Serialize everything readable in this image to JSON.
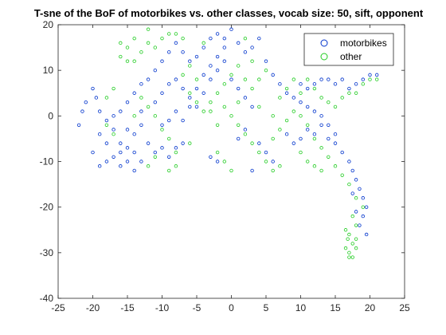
{
  "chart_data": {
    "type": "scatter",
    "title": "T-sne of the BoF of motorbikes vs. other classes, vocab size: 50, sift, opponent",
    "xlabel": "",
    "ylabel": "",
    "xlim": [
      -25,
      25
    ],
    "ylim": [
      -40,
      20
    ],
    "xticks": [
      -25,
      -20,
      -15,
      -10,
      -5,
      0,
      5,
      10,
      15,
      20,
      25
    ],
    "yticks": [
      -40,
      -30,
      -20,
      -10,
      0,
      10,
      20
    ],
    "grid": false,
    "legend_position": "top-right",
    "series": [
      {
        "name": "motorbikes",
        "color": "#0033cc",
        "points": [
          [
            -22,
            -2
          ],
          [
            -21.5,
            1
          ],
          [
            -21,
            3
          ],
          [
            -20,
            6
          ],
          [
            -19.5,
            4
          ],
          [
            -19,
            1
          ],
          [
            -18,
            -1
          ],
          [
            -17,
            0
          ],
          [
            -19,
            -4
          ],
          [
            -18,
            -6
          ],
          [
            -20,
            -8
          ],
          [
            -19,
            -11
          ],
          [
            -18,
            -10
          ],
          [
            -17,
            -9
          ],
          [
            -16,
            -11
          ],
          [
            -15,
            -10
          ],
          [
            -14,
            -12
          ],
          [
            -16,
            -6
          ],
          [
            -15,
            -3
          ],
          [
            -14,
            -4
          ],
          [
            -13,
            -2
          ],
          [
            -17,
            -3
          ],
          [
            -16,
            -8
          ],
          [
            -15,
            -7
          ],
          [
            -14,
            -8
          ],
          [
            -13,
            -10
          ],
          [
            -12,
            -6
          ],
          [
            -11,
            -8
          ],
          [
            -10,
            -7
          ],
          [
            -9,
            -9
          ],
          [
            -8,
            -7
          ],
          [
            -7,
            -6
          ],
          [
            -15,
            3
          ],
          [
            -14,
            5
          ],
          [
            -13,
            7
          ],
          [
            -12,
            8
          ],
          [
            -11,
            10
          ],
          [
            -10,
            12
          ],
          [
            -9,
            14
          ],
          [
            -8,
            16
          ],
          [
            -7,
            14
          ],
          [
            -6,
            12
          ],
          [
            -5,
            13
          ],
          [
            -4,
            15
          ],
          [
            -3,
            17
          ],
          [
            -2,
            18
          ],
          [
            -1,
            17
          ],
          [
            0,
            19
          ],
          [
            1,
            16
          ],
          [
            2,
            14
          ],
          [
            3,
            15
          ],
          [
            4,
            17
          ],
          [
            -11,
            3
          ],
          [
            -10,
            5
          ],
          [
            -9,
            7
          ],
          [
            -8,
            8
          ],
          [
            -7,
            6
          ],
          [
            -6,
            4
          ],
          [
            -5,
            2
          ],
          [
            -4,
            5
          ],
          [
            -3,
            8
          ],
          [
            -2,
            10
          ],
          [
            -1,
            12
          ],
          [
            0,
            8
          ],
          [
            1,
            6
          ],
          [
            2,
            4
          ],
          [
            3,
            2
          ],
          [
            -10,
            -2
          ],
          [
            -9,
            -1
          ],
          [
            -8,
            1
          ],
          [
            -7,
            -1
          ],
          [
            -6,
            2
          ],
          [
            -5,
            6
          ],
          [
            -4,
            9
          ],
          [
            -3,
            11
          ],
          [
            -2,
            13
          ],
          [
            -1,
            15
          ],
          [
            5,
            12
          ],
          [
            6,
            9
          ],
          [
            7,
            7
          ],
          [
            8,
            5
          ],
          [
            9,
            4
          ],
          [
            10,
            3
          ],
          [
            11,
            2
          ],
          [
            12,
            1
          ],
          [
            13,
            0
          ],
          [
            14,
            -2
          ],
          [
            15,
            -4
          ],
          [
            10,
            7
          ],
          [
            11,
            6
          ],
          [
            12,
            7
          ],
          [
            13,
            8
          ],
          [
            14,
            8
          ],
          [
            15,
            7
          ],
          [
            16,
            8
          ],
          [
            17,
            6
          ],
          [
            18,
            7
          ],
          [
            19,
            8
          ],
          [
            20,
            9
          ],
          [
            21,
            9
          ],
          [
            8,
            -4
          ],
          [
            9,
            -6
          ],
          [
            10,
            -5
          ],
          [
            11,
            -3
          ],
          [
            12,
            -4
          ],
          [
            13,
            -2
          ],
          [
            14,
            -5
          ],
          [
            15,
            -6
          ],
          [
            16,
            -8
          ],
          [
            17,
            -10
          ],
          [
            17.5,
            -12
          ],
          [
            18,
            -14
          ],
          [
            18.5,
            -16
          ],
          [
            19,
            -18
          ],
          [
            19.5,
            -20
          ],
          [
            19,
            -22
          ],
          [
            18.5,
            -24
          ],
          [
            19.5,
            -26
          ],
          [
            18,
            -21
          ],
          [
            17.5,
            -17
          ],
          [
            -2,
            -10
          ],
          [
            -3,
            -9
          ],
          [
            1,
            -5
          ],
          [
            2,
            -3
          ],
          [
            4,
            -6
          ],
          [
            5,
            -8
          ],
          [
            6,
            -10
          ],
          [
            3,
            -12
          ],
          [
            -13,
            1
          ],
          [
            -16,
            1
          ]
        ]
      },
      {
        "name": "other",
        "color": "#22cc22",
        "points": [
          [
            -16,
            16
          ],
          [
            -15,
            15
          ],
          [
            -14,
            17
          ],
          [
            -13,
            14
          ],
          [
            -15,
            12
          ],
          [
            -16,
            13
          ],
          [
            -14,
            12
          ],
          [
            -12,
            16
          ],
          [
            -11,
            15
          ],
          [
            -10,
            17
          ],
          [
            -9,
            18
          ],
          [
            -8,
            18
          ],
          [
            -7,
            17
          ],
          [
            -12,
            19
          ],
          [
            -18,
            4
          ],
          [
            -17,
            6
          ],
          [
            -18,
            -2
          ],
          [
            -17,
            -4
          ],
          [
            -13,
            4
          ],
          [
            -12,
            2
          ],
          [
            -11,
            0
          ],
          [
            -10,
            -3
          ],
          [
            -9,
            -5
          ],
          [
            -8,
            -8
          ],
          [
            -12,
            -11
          ],
          [
            -11,
            -9
          ],
          [
            -9,
            -12
          ],
          [
            -6,
            5
          ],
          [
            -5,
            3
          ],
          [
            -4,
            1
          ],
          [
            -3,
            3
          ],
          [
            -2,
            5
          ],
          [
            -1,
            7
          ],
          [
            0,
            9
          ],
          [
            1,
            11
          ],
          [
            -7,
            9
          ],
          [
            -6,
            11
          ],
          [
            -5,
            8
          ],
          [
            -3,
            1
          ],
          [
            -1,
            2
          ],
          [
            1,
            3
          ],
          [
            3,
            6
          ],
          [
            4,
            8
          ],
          [
            5,
            10
          ],
          [
            0,
            0
          ],
          [
            1,
            -2
          ],
          [
            2,
            -4
          ],
          [
            3,
            -6
          ],
          [
            4,
            -8
          ],
          [
            5,
            -10
          ],
          [
            6,
            -12
          ],
          [
            7,
            -11
          ],
          [
            0,
            -12
          ],
          [
            -1,
            -10
          ],
          [
            -2,
            -8
          ],
          [
            6,
            -5
          ],
          [
            7,
            -3
          ],
          [
            8,
            -1
          ],
          [
            9,
            1
          ],
          [
            10,
            0
          ],
          [
            11,
            -2
          ],
          [
            12,
            -5
          ],
          [
            13,
            -7
          ],
          [
            14,
            -9
          ],
          [
            15,
            -11
          ],
          [
            16,
            -13
          ],
          [
            7,
            4
          ],
          [
            8,
            6
          ],
          [
            9,
            8
          ],
          [
            10,
            5
          ],
          [
            11,
            8
          ],
          [
            12,
            6
          ],
          [
            13,
            4
          ],
          [
            14,
            3
          ],
          [
            15,
            2
          ],
          [
            16,
            4
          ],
          [
            17,
            5
          ],
          [
            18,
            5
          ],
          [
            19,
            7
          ],
          [
            20,
            8
          ],
          [
            21,
            8
          ],
          [
            10,
            -8
          ],
          [
            11,
            -10
          ],
          [
            12,
            -11
          ],
          [
            13,
            -12
          ],
          [
            17,
            -15
          ],
          [
            18,
            -18
          ],
          [
            19,
            -20
          ],
          [
            17.5,
            -22
          ],
          [
            18,
            -24
          ],
          [
            17,
            -26
          ],
          [
            17.5,
            -28
          ],
          [
            16.5,
            -29
          ],
          [
            17,
            -30
          ],
          [
            17.5,
            -31
          ],
          [
            16.8,
            -27
          ],
          [
            18,
            -27
          ],
          [
            16.5,
            -25
          ],
          [
            18,
            -29
          ],
          [
            17,
            -31
          ],
          [
            -4,
            16
          ],
          [
            2,
            17
          ],
          [
            3,
            12
          ],
          [
            2,
            8
          ],
          [
            4,
            2
          ],
          [
            -2,
            -2
          ],
          [
            6,
            0
          ],
          [
            -8,
            -11
          ],
          [
            -6,
            -6
          ],
          [
            -14,
            0
          ]
        ]
      }
    ]
  }
}
